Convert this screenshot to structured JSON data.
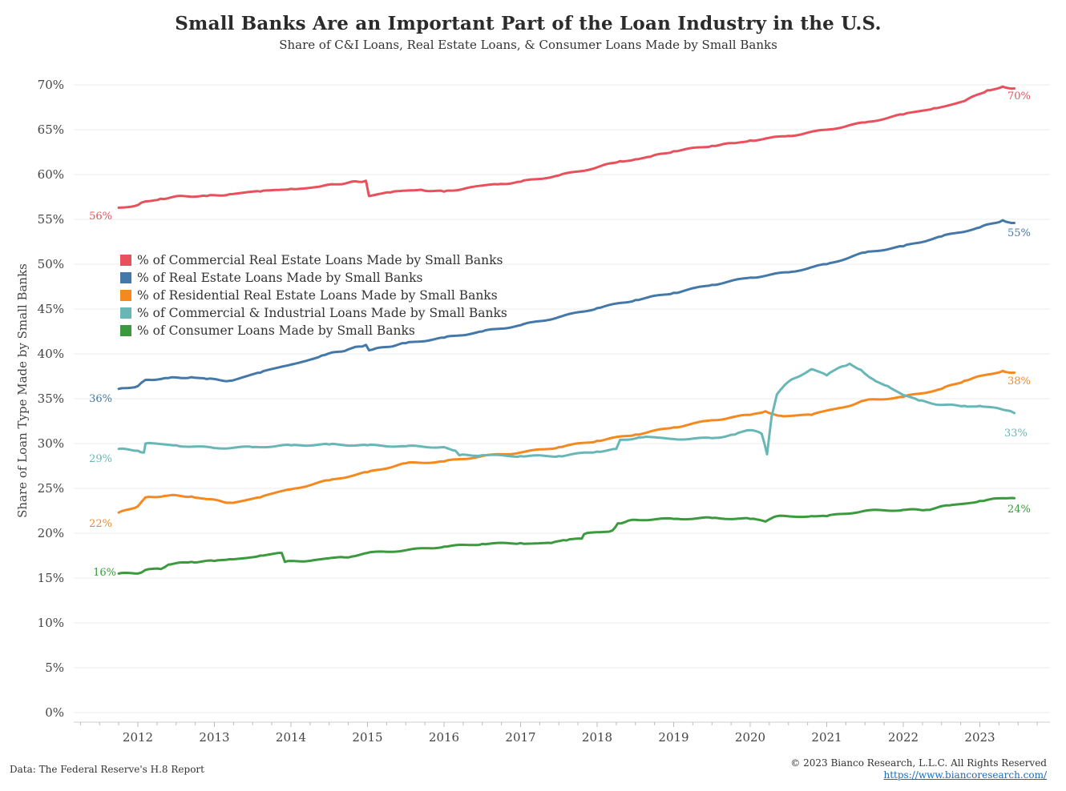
{
  "chart_data": {
    "type": "line",
    "title": "Small Banks Are an Important Part of the Loan Industry in the U.S.",
    "subtitle": "Share of C&I Loans, Real Estate Loans, & Consumer Loans Made by Small Banks",
    "ylabel": "Share of Loan Type Made by Small Banks",
    "xlabel": "",
    "ylim": [
      0,
      72
    ],
    "xlim": [
      2011.2,
      2024.05
    ],
    "yticks": [
      0,
      5,
      10,
      15,
      20,
      25,
      30,
      35,
      40,
      45,
      50,
      55,
      60,
      65,
      70
    ],
    "ytick_labels": [
      "0%",
      "5%",
      "10%",
      "15%",
      "20%",
      "25%",
      "30%",
      "35%",
      "40%",
      "45%",
      "50%",
      "55%",
      "60%",
      "65%",
      "70%"
    ],
    "xticks": [
      2012,
      2013,
      2014,
      2015,
      2016,
      2017,
      2018,
      2019,
      2020,
      2021,
      2022,
      2023
    ],
    "xtick_labels": [
      "2012",
      "2013",
      "2014",
      "2015",
      "2016",
      "2017",
      "2018",
      "2019",
      "2020",
      "2021",
      "2022",
      "2023"
    ],
    "grid": true,
    "legend_position": "upper-left",
    "series": [
      {
        "name": "% of Commercial Real Estate Loans Made by Small Banks",
        "color": "#e8505b",
        "start_label": "56%",
        "end_label": "70%",
        "x": [
          2011.75,
          2012.0,
          2012.1,
          2012.3,
          2012.6,
          2012.9,
          2013.2,
          2013.6,
          2014.0,
          2014.4,
          2014.75,
          2014.98,
          2015.02,
          2015.3,
          2015.7,
          2016.0,
          2016.3,
          2016.7,
          2017.0,
          2017.5,
          2018.0,
          2018.3,
          2018.5,
          2018.7,
          2019.0,
          2019.5,
          2019.8,
          2020.0,
          2020.5,
          2021.0,
          2021.5,
          2022.0,
          2022.4,
          2022.8,
          2023.1,
          2023.3,
          2023.45
        ],
        "values": [
          56.3,
          56.6,
          57.0,
          57.3,
          57.6,
          57.6,
          57.8,
          58.1,
          58.4,
          58.7,
          59.1,
          59.3,
          57.6,
          58.0,
          58.3,
          58.1,
          58.5,
          58.9,
          59.2,
          59.9,
          60.8,
          61.5,
          61.7,
          62.0,
          62.6,
          63.2,
          63.5,
          63.8,
          64.3,
          65.0,
          65.8,
          66.7,
          67.4,
          68.2,
          69.4,
          69.8,
          69.6
        ]
      },
      {
        "name": "% of Real Estate Loans Made by Small Banks",
        "color": "#4478a8",
        "start_label": "36%",
        "end_label": "55%",
        "x": [
          2011.75,
          2012.0,
          2012.1,
          2012.4,
          2012.7,
          2012.9,
          2013.2,
          2013.6,
          2014.0,
          2014.4,
          2014.75,
          2014.98,
          2015.02,
          2015.5,
          2016.0,
          2016.5,
          2017.0,
          2017.5,
          2018.0,
          2018.5,
          2019.0,
          2019.5,
          2020.0,
          2020.5,
          2021.0,
          2021.5,
          2022.0,
          2022.5,
          2023.0,
          2023.3,
          2023.45
        ],
        "values": [
          36.1,
          36.4,
          37.1,
          37.3,
          37.4,
          37.2,
          37.0,
          37.9,
          38.8,
          39.8,
          40.5,
          41.0,
          40.4,
          41.2,
          41.8,
          42.5,
          43.2,
          44.1,
          45.1,
          46.0,
          46.8,
          47.7,
          48.5,
          49.1,
          50.0,
          51.3,
          52.0,
          53.1,
          54.1,
          54.9,
          54.6
        ]
      },
      {
        "name": "% of Residential Real Estate Loans Made by Small Banks",
        "color": "#f5891f",
        "start_label": "22%",
        "end_label": "38%",
        "x": [
          2011.75,
          2012.0,
          2012.1,
          2012.4,
          2012.7,
          2012.9,
          2013.2,
          2013.6,
          2014.0,
          2014.5,
          2015.0,
          2015.5,
          2016.0,
          2016.5,
          2017.0,
          2017.5,
          2018.0,
          2018.5,
          2019.0,
          2019.5,
          2020.0,
          2020.2,
          2020.4,
          2020.8,
          2021.2,
          2021.5,
          2022.0,
          2022.5,
          2022.8,
          2023.1,
          2023.3,
          2023.45
        ],
        "values": [
          22.3,
          23.0,
          24.0,
          24.2,
          24.1,
          23.8,
          23.4,
          24.0,
          24.9,
          25.9,
          26.8,
          27.8,
          28.0,
          28.6,
          29.0,
          29.6,
          30.3,
          31.0,
          31.8,
          32.6,
          33.2,
          33.6,
          33.1,
          33.2,
          34.0,
          34.8,
          35.2,
          36.1,
          37.0,
          37.7,
          38.1,
          37.9
        ]
      },
      {
        "name": "% of Commercial & Industrial Loans Made by Small Banks",
        "color": "#68b7b6",
        "start_label": "29%",
        "end_label": "33%",
        "x": [
          2011.75,
          2012.0,
          2012.08,
          2012.1,
          2012.5,
          2013.0,
          2013.5,
          2014.0,
          2014.5,
          2015.0,
          2015.5,
          2016.0,
          2016.15,
          2016.2,
          2016.5,
          2017.0,
          2017.5,
          2018.0,
          2018.25,
          2018.3,
          2018.6,
          2019.0,
          2019.5,
          2019.8,
          2020.0,
          2020.15,
          2020.22,
          2020.28,
          2020.35,
          2020.5,
          2020.8,
          2021.0,
          2021.2,
          2021.3,
          2021.45,
          2021.6,
          2021.8,
          2022.0,
          2022.2,
          2022.5,
          2022.8,
          2023.0,
          2023.2,
          2023.35,
          2023.45
        ],
        "values": [
          29.4,
          29.2,
          29.0,
          30.0,
          29.8,
          29.5,
          29.6,
          29.8,
          29.9,
          29.8,
          29.7,
          29.6,
          29.2,
          28.7,
          28.7,
          28.6,
          28.6,
          29.1,
          29.4,
          30.4,
          30.7,
          30.5,
          30.6,
          31.0,
          31.5,
          31.1,
          28.8,
          33.0,
          35.5,
          36.9,
          38.3,
          37.6,
          38.6,
          38.9,
          38.2,
          37.2,
          36.4,
          35.4,
          34.8,
          34.3,
          34.2,
          34.2,
          34.0,
          33.7,
          33.4
        ]
      },
      {
        "name": "% of Consumer Loans Made by Small Banks",
        "color": "#3a9a3d",
        "start_label": "16%",
        "end_label": "24%",
        "x": [
          2011.75,
          2012.0,
          2012.1,
          2012.3,
          2012.4,
          2012.7,
          2013.0,
          2013.2,
          2013.6,
          2013.88,
          2013.92,
          2014.3,
          2014.7,
          2014.8,
          2015.0,
          2015.5,
          2016.0,
          2016.5,
          2017.0,
          2017.4,
          2017.6,
          2017.8,
          2017.83,
          2018.2,
          2018.27,
          2018.5,
          2019.0,
          2019.5,
          2020.0,
          2020.2,
          2020.35,
          2020.8,
          2021.0,
          2021.5,
          2022.0,
          2022.3,
          2022.6,
          2023.0,
          2023.3,
          2023.45
        ],
        "values": [
          15.5,
          15.5,
          15.9,
          16.0,
          16.5,
          16.8,
          16.9,
          17.1,
          17.5,
          17.8,
          16.8,
          17.0,
          17.3,
          17.4,
          17.8,
          18.1,
          18.5,
          18.8,
          18.9,
          18.9,
          19.2,
          19.4,
          19.9,
          20.3,
          21.1,
          21.5,
          21.6,
          21.7,
          21.6,
          21.3,
          21.9,
          21.9,
          21.9,
          22.5,
          22.6,
          22.6,
          23.1,
          23.6,
          23.9,
          23.9
        ]
      }
    ]
  },
  "source": "Data: The Federal Reserve's H.8 Report",
  "copyright": "© 2023 Bianco Research, L.L.C. All Rights Reserved",
  "url": "https://www.biancoresearch.com/"
}
